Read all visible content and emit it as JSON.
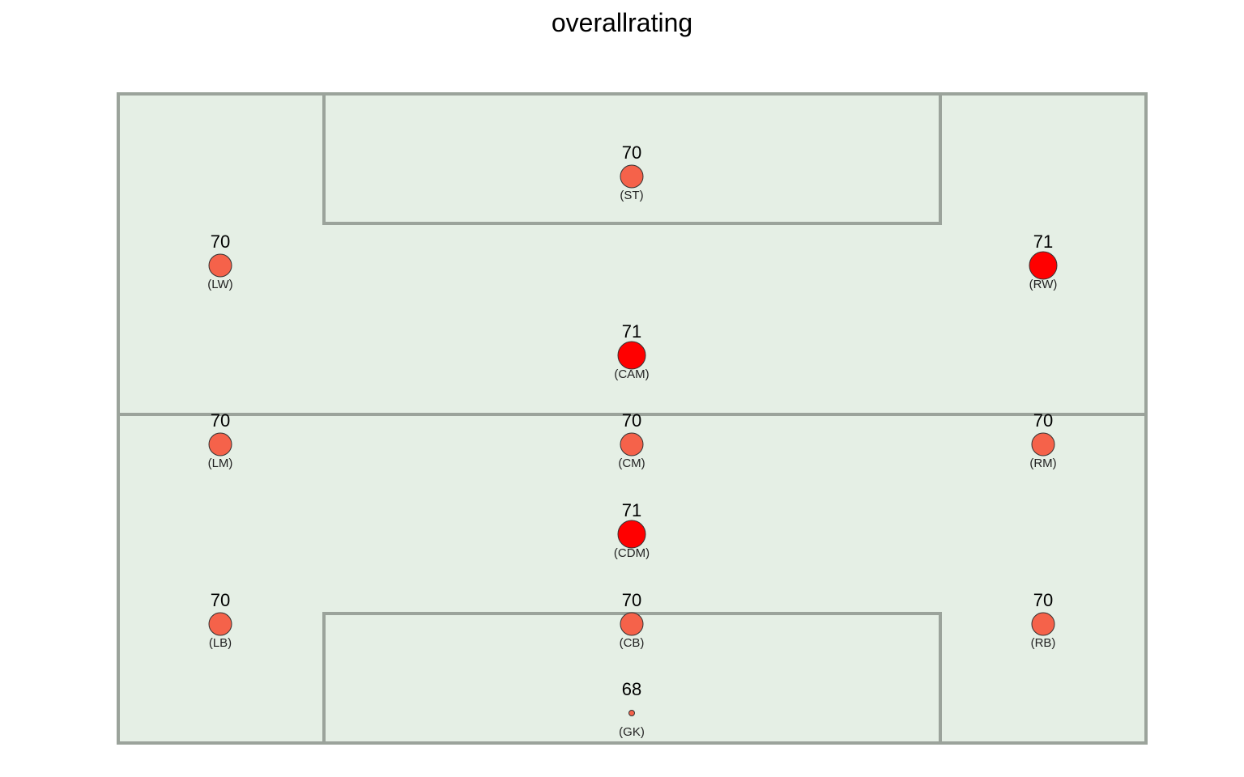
{
  "chart_data": {
    "type": "scatter",
    "title": "overallrating",
    "colors": {
      "pitch_fill": "#e5efe5",
      "pitch_line": "#9ba39b",
      "value_70": "#f5624a",
      "value_71": "#ff0000",
      "value_68": "#f5624a"
    },
    "points": [
      {
        "position": "(ST)",
        "value": "70",
        "rating": 70,
        "col": 2,
        "row": 1
      },
      {
        "position": "(LW)",
        "value": "70",
        "rating": 70,
        "col": 1,
        "row": 2
      },
      {
        "position": "(RW)",
        "value": "71",
        "rating": 71,
        "col": 3,
        "row": 2
      },
      {
        "position": "(CAM)",
        "value": "71",
        "rating": 71,
        "col": 2,
        "row": 3
      },
      {
        "position": "(LM)",
        "value": "70",
        "rating": 70,
        "col": 1,
        "row": 4
      },
      {
        "position": "(CM)",
        "value": "70",
        "rating": 70,
        "col": 2,
        "row": 4
      },
      {
        "position": "(RM)",
        "value": "70",
        "rating": 70,
        "col": 3,
        "row": 4
      },
      {
        "position": "(CDM)",
        "value": "71",
        "rating": 71,
        "col": 2,
        "row": 5
      },
      {
        "position": "(LB)",
        "value": "70",
        "rating": 70,
        "col": 1,
        "row": 6
      },
      {
        "position": "(CB)",
        "value": "70",
        "rating": 70,
        "col": 2,
        "row": 6
      },
      {
        "position": "(RB)",
        "value": "70",
        "rating": 70,
        "col": 3,
        "row": 6
      },
      {
        "position": "(GK)",
        "value": "68",
        "rating": 68,
        "col": 2,
        "row": 7
      }
    ]
  }
}
